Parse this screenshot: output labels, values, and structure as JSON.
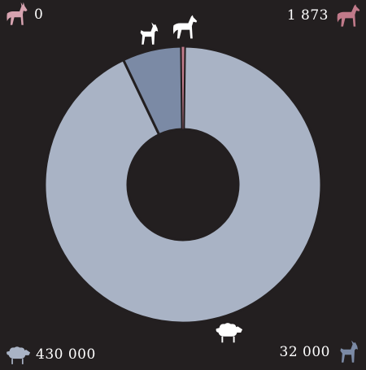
{
  "colors": {
    "background": "#231f20",
    "sheep": "#a9b3c5",
    "goat": "#7b8aa5",
    "horse": "#c17a8a",
    "donkey": "#d7a3b0",
    "icon_light": "#ffffff"
  },
  "legend": {
    "donkey": {
      "icon": "donkey-icon",
      "value": "0"
    },
    "horse": {
      "icon": "horse-icon",
      "value": "1 873"
    },
    "sheep": {
      "icon": "sheep-icon",
      "value": "430 000"
    },
    "goat": {
      "icon": "goat-icon",
      "value": "32 000"
    }
  },
  "chart_data": {
    "type": "pie",
    "variant": "donut",
    "slices": [
      {
        "category": "sheep",
        "value": 430000
      },
      {
        "category": "goat",
        "value": 32000
      },
      {
        "category": "horse",
        "value": 1873
      },
      {
        "category": "donkey",
        "value": 0
      }
    ],
    "slice_icons": [
      "goat-icon",
      "horse-icon",
      "sheep-icon"
    ],
    "legend_placement": "corners"
  }
}
